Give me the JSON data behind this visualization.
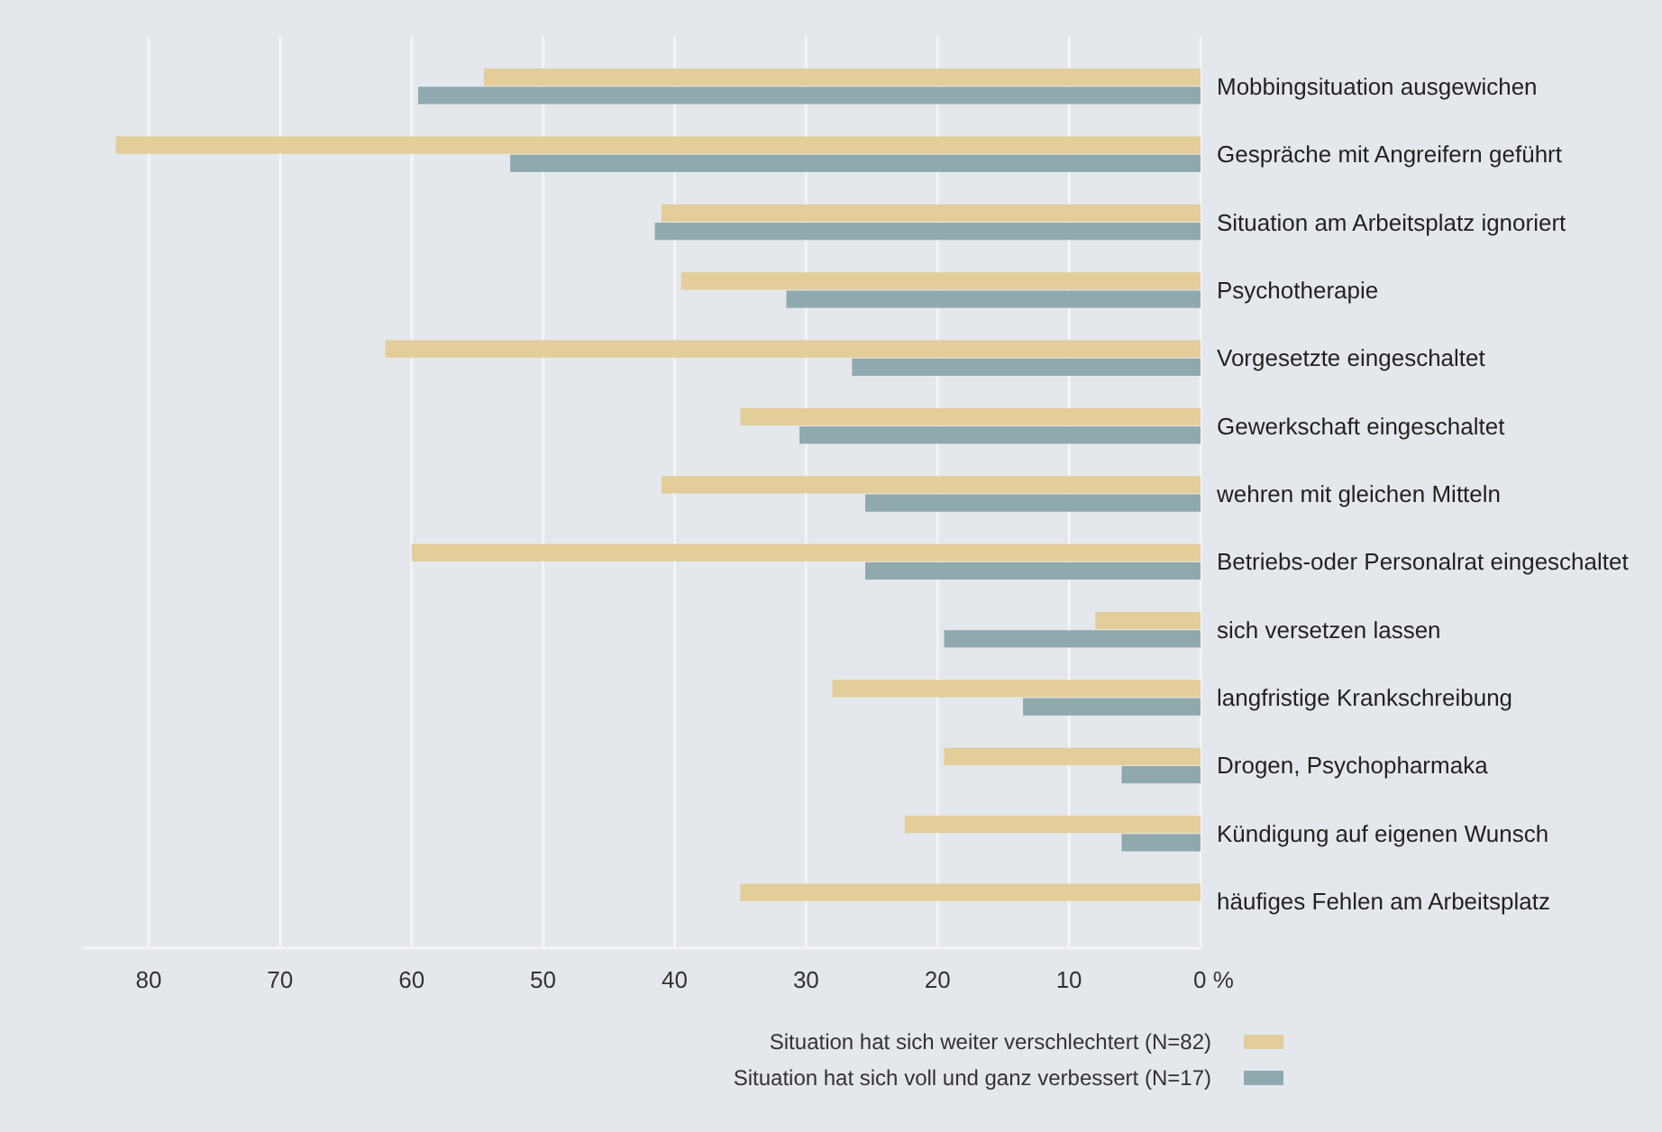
{
  "chart_data": {
    "type": "bar",
    "orientation": "horizontal",
    "grid": "x",
    "legend": "bottom",
    "categories": [
      "Mobbingsituation ausgewichen",
      "Gespräche mit Angreifern geführt",
      "Situation am Arbeitsplatz ignoriert",
      "Psychotherapie",
      "Vorgesetzte eingeschaltet",
      "Gewerkschaft eingeschaltet",
      "wehren mit gleichen Mitteln",
      "Betriebs-oder Personalrat eingeschaltet",
      "sich versetzen lassen",
      "langfristige Krankschreibung",
      "Drogen, Psychopharmaka",
      "Kündigung auf eigenen Wunsch",
      "häufiges Fehlen am Arbeitsplatz"
    ],
    "xlim": [
      85,
      0
    ],
    "xticks": [
      80,
      70,
      60,
      50,
      40,
      30,
      20,
      10,
      {
        "value": 0,
        "label": "0 %"
      }
    ],
    "series": [
      {
        "name": "Situation hat sich weiter verschlechtert (N=82)",
        "color": "#e3cd98",
        "values": [
          54.5,
          82.5,
          41,
          39.5,
          62,
          35,
          41,
          60,
          8,
          28,
          19.5,
          22.5,
          35
        ]
      },
      {
        "name": "Situation hat sich voll und ganz verbessert (N=17)",
        "color": "#8fa9ae",
        "values": [
          59.5,
          52.5,
          41.5,
          31.5,
          26.5,
          30.5,
          25.5,
          25.5,
          19.5,
          13.5,
          6,
          6,
          null
        ]
      }
    ]
  }
}
